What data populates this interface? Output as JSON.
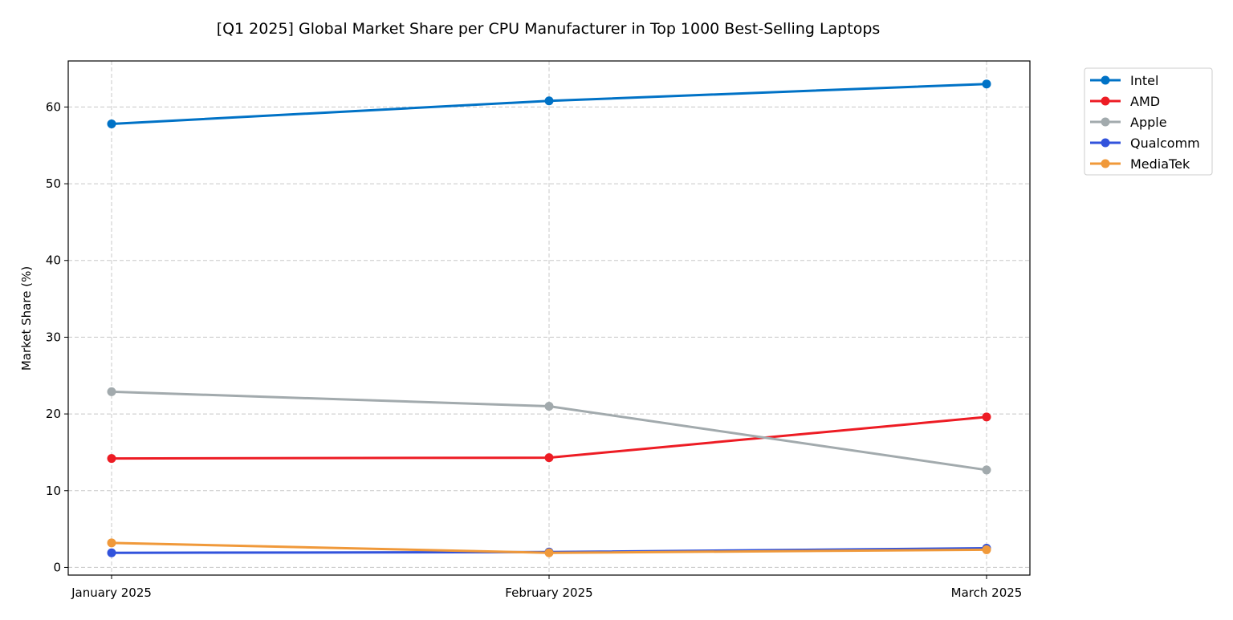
{
  "chart_data": {
    "type": "line",
    "title": "[Q1 2025] Global Market Share per CPU Manufacturer in Top 1000 Best-Selling Laptops",
    "xlabel": "",
    "ylabel": "Market Share (%)",
    "categories": [
      "January 2025",
      "February 2025",
      "March 2025"
    ],
    "ylim": [
      -1,
      66
    ],
    "yticks": [
      0,
      10,
      20,
      30,
      40,
      50,
      60
    ],
    "grid": true,
    "legend": "outside-top-right",
    "series": [
      {
        "name": "Intel",
        "color": "#0072c6",
        "values": [
          57.8,
          60.8,
          63.0
        ]
      },
      {
        "name": "AMD",
        "color": "#ed1c24",
        "values": [
          14.2,
          14.3,
          19.6
        ]
      },
      {
        "name": "Apple",
        "color": "#a2aaad",
        "values": [
          22.9,
          21.0,
          12.7
        ]
      },
      {
        "name": "Qualcomm",
        "color": "#3253dc",
        "values": [
          1.9,
          2.0,
          2.5
        ]
      },
      {
        "name": "MediaTek",
        "color": "#f0993a",
        "values": [
          3.2,
          1.9,
          2.3
        ]
      }
    ]
  }
}
